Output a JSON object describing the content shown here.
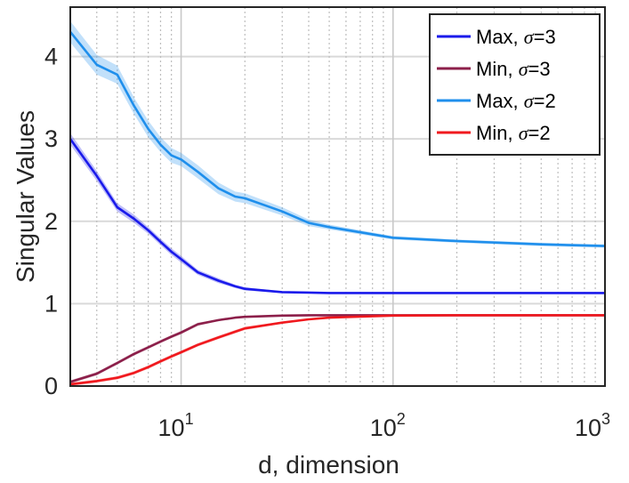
{
  "chart_data": {
    "type": "line",
    "x_scale": "log",
    "xlim": [
      3,
      1000
    ],
    "ylim": [
      0,
      4.6
    ],
    "xlabel": "d, dimension",
    "ylabel": "Singular Values",
    "x_ticks": [
      {
        "value": 10,
        "base": "10",
        "exp": "1"
      },
      {
        "value": 100,
        "base": "10",
        "exp": "2"
      },
      {
        "value": 1000,
        "base": "10",
        "exp": "3"
      }
    ],
    "y_ticks": [
      {
        "value": 0,
        "label": "0"
      },
      {
        "value": 1,
        "label": "1"
      },
      {
        "value": 2,
        "label": "2"
      },
      {
        "value": 3,
        "label": "3"
      },
      {
        "value": 4,
        "label": "4"
      }
    ],
    "grid": {
      "y_major": true,
      "x_minor_dotted": true,
      "x_major": true
    },
    "legend": {
      "position": "top-right"
    },
    "series": [
      {
        "name": "Max, σ=3",
        "name_prefix": "Max, ",
        "name_symbol": "σ",
        "name_suffix": "=3",
        "color": "#1a1aeb",
        "x": [
          3,
          4,
          5,
          6,
          7,
          8,
          9,
          10,
          12,
          15,
          18,
          20,
          30,
          40,
          50,
          100,
          200,
          500,
          1000
        ],
        "y": [
          3.0,
          2.55,
          2.17,
          2.03,
          1.89,
          1.75,
          1.63,
          1.54,
          1.38,
          1.28,
          1.21,
          1.18,
          1.14,
          1.135,
          1.13,
          1.13,
          1.13,
          1.13,
          1.13
        ],
        "band": [
          0.07,
          0.06,
          0.05,
          0.05,
          0.04,
          0.04,
          0.04,
          0.04,
          0.03,
          0.03,
          0.02,
          0.02,
          0.01,
          0.01,
          0.01,
          0.01,
          0.01,
          0.01,
          0.01
        ]
      },
      {
        "name": "Min, σ=3",
        "name_prefix": "Min, ",
        "name_symbol": "σ",
        "name_suffix": "=3",
        "color": "#8c1f4a",
        "x": [
          3,
          4,
          5,
          6,
          7,
          8,
          9,
          10,
          12,
          15,
          18,
          20,
          30,
          40,
          50,
          100,
          200,
          500,
          1000
        ],
        "y": [
          0.05,
          0.15,
          0.28,
          0.39,
          0.47,
          0.54,
          0.6,
          0.65,
          0.75,
          0.8,
          0.83,
          0.84,
          0.855,
          0.86,
          0.86,
          0.86,
          0.86,
          0.86,
          0.86
        ],
        "band": [
          0.02,
          0.02,
          0.02,
          0.02,
          0.02,
          0.02,
          0.02,
          0.02,
          0.02,
          0.01,
          0.01,
          0.01,
          0.01,
          0.01,
          0.01,
          0.01,
          0.01,
          0.01,
          0.01
        ]
      },
      {
        "name": "Max, σ=2",
        "name_prefix": "Max, ",
        "name_symbol": "σ",
        "name_suffix": "=2",
        "color": "#1f8fec",
        "x": [
          3,
          4,
          5,
          6,
          7,
          8,
          9,
          10,
          12,
          15,
          18,
          20,
          30,
          40,
          50,
          100,
          200,
          500,
          1000
        ],
        "y": [
          4.3,
          3.9,
          3.78,
          3.4,
          3.12,
          2.93,
          2.8,
          2.75,
          2.6,
          2.4,
          2.3,
          2.28,
          2.12,
          1.98,
          1.93,
          1.8,
          1.76,
          1.72,
          1.7
        ],
        "band": [
          0.13,
          0.12,
          0.11,
          0.1,
          0.1,
          0.09,
          0.09,
          0.08,
          0.08,
          0.07,
          0.06,
          0.06,
          0.05,
          0.04,
          0.03,
          0.02,
          0.02,
          0.02,
          0.02
        ]
      },
      {
        "name": "Min, σ=2",
        "name_prefix": "Min, ",
        "name_symbol": "σ",
        "name_suffix": "=2",
        "color": "#f0191e",
        "x": [
          3,
          4,
          5,
          6,
          7,
          8,
          9,
          10,
          12,
          15,
          18,
          20,
          30,
          40,
          50,
          100,
          200,
          500,
          1000
        ],
        "y": [
          0.02,
          0.06,
          0.1,
          0.16,
          0.23,
          0.3,
          0.36,
          0.41,
          0.5,
          0.59,
          0.66,
          0.7,
          0.77,
          0.81,
          0.83,
          0.855,
          0.86,
          0.86,
          0.86
        ],
        "band": [
          0.02,
          0.02,
          0.02,
          0.02,
          0.02,
          0.02,
          0.02,
          0.02,
          0.02,
          0.02,
          0.02,
          0.02,
          0.01,
          0.01,
          0.01,
          0.01,
          0.01,
          0.01,
          0.01
        ]
      }
    ]
  }
}
